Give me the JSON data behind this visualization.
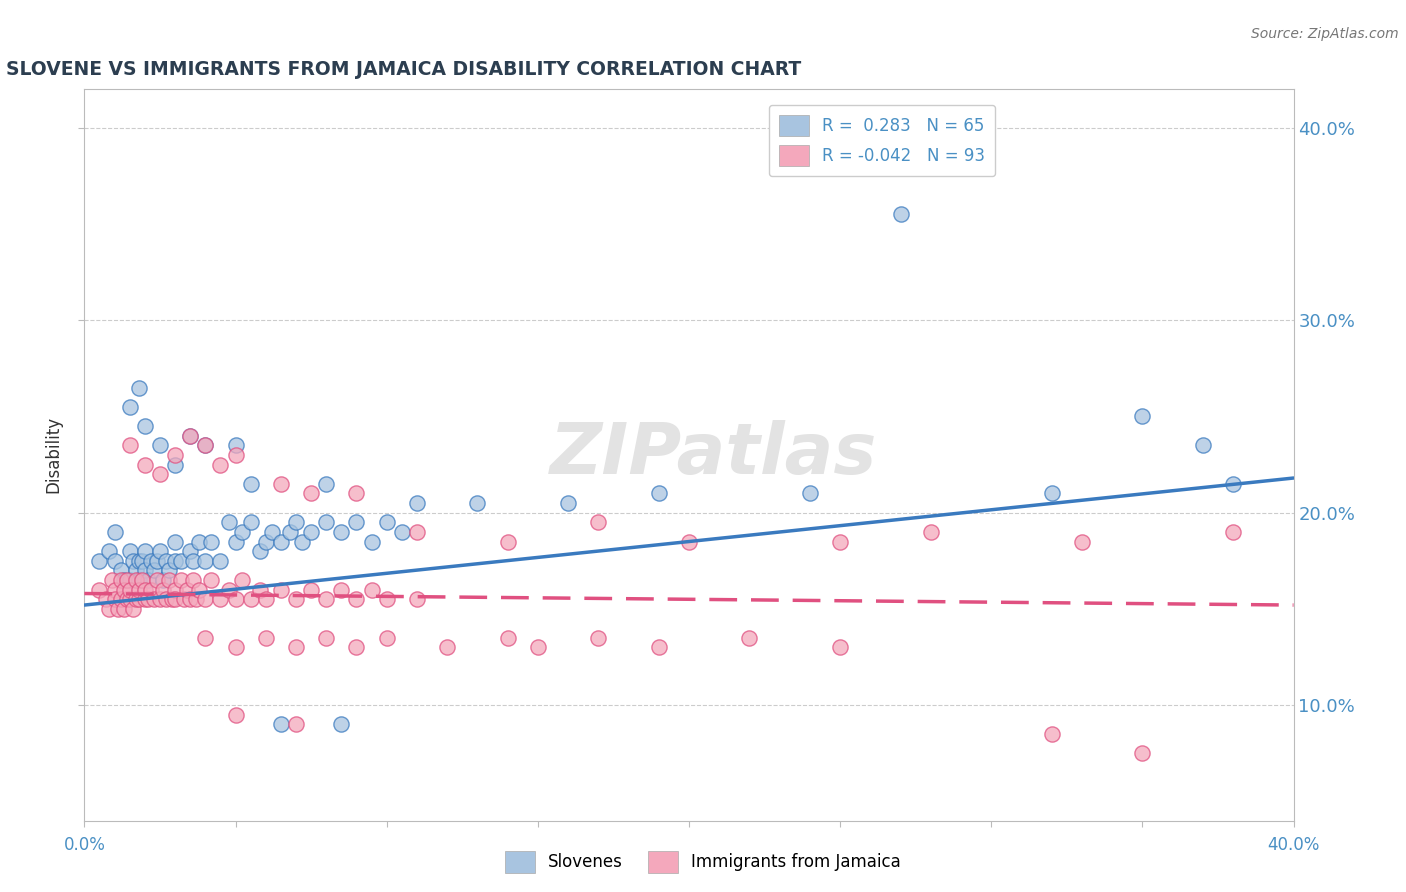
{
  "title": "SLOVENE VS IMMIGRANTS FROM JAMAICA DISABILITY CORRELATION CHART",
  "source": "Source: ZipAtlas.com",
  "ylabel": "Disability",
  "xlim": [
    0.0,
    0.4
  ],
  "ylim": [
    0.04,
    0.42
  ],
  "yticks": [
    0.1,
    0.2,
    0.3,
    0.4
  ],
  "right_ytick_labels": [
    "10.0%",
    "20.0%",
    "30.0%",
    "40.0%"
  ],
  "color_blue": "#a8c4e0",
  "color_pink": "#f4a8bc",
  "color_blue_line": "#3a7abf",
  "color_pink_line": "#e05080",
  "watermark_text": "ZIPatlas",
  "slovene_points": [
    [
      0.005,
      0.175
    ],
    [
      0.008,
      0.18
    ],
    [
      0.01,
      0.19
    ],
    [
      0.01,
      0.175
    ],
    [
      0.012,
      0.17
    ],
    [
      0.013,
      0.165
    ],
    [
      0.015,
      0.18
    ],
    [
      0.015,
      0.165
    ],
    [
      0.016,
      0.175
    ],
    [
      0.017,
      0.17
    ],
    [
      0.018,
      0.165
    ],
    [
      0.018,
      0.175
    ],
    [
      0.019,
      0.175
    ],
    [
      0.02,
      0.17
    ],
    [
      0.02,
      0.18
    ],
    [
      0.021,
      0.165
    ],
    [
      0.022,
      0.175
    ],
    [
      0.023,
      0.17
    ],
    [
      0.024,
      0.175
    ],
    [
      0.025,
      0.18
    ],
    [
      0.026,
      0.165
    ],
    [
      0.027,
      0.175
    ],
    [
      0.028,
      0.17
    ],
    [
      0.03,
      0.175
    ],
    [
      0.03,
      0.185
    ],
    [
      0.032,
      0.175
    ],
    [
      0.035,
      0.18
    ],
    [
      0.036,
      0.175
    ],
    [
      0.038,
      0.185
    ],
    [
      0.04,
      0.175
    ],
    [
      0.042,
      0.185
    ],
    [
      0.045,
      0.175
    ],
    [
      0.048,
      0.195
    ],
    [
      0.05,
      0.185
    ],
    [
      0.052,
      0.19
    ],
    [
      0.055,
      0.195
    ],
    [
      0.058,
      0.18
    ],
    [
      0.06,
      0.185
    ],
    [
      0.062,
      0.19
    ],
    [
      0.065,
      0.185
    ],
    [
      0.068,
      0.19
    ],
    [
      0.07,
      0.195
    ],
    [
      0.072,
      0.185
    ],
    [
      0.075,
      0.19
    ],
    [
      0.08,
      0.195
    ],
    [
      0.085,
      0.19
    ],
    [
      0.09,
      0.195
    ],
    [
      0.095,
      0.185
    ],
    [
      0.1,
      0.195
    ],
    [
      0.105,
      0.19
    ],
    [
      0.015,
      0.255
    ],
    [
      0.02,
      0.245
    ],
    [
      0.018,
      0.265
    ],
    [
      0.025,
      0.235
    ],
    [
      0.03,
      0.225
    ],
    [
      0.035,
      0.24
    ],
    [
      0.04,
      0.235
    ],
    [
      0.05,
      0.235
    ],
    [
      0.055,
      0.215
    ],
    [
      0.08,
      0.215
    ],
    [
      0.11,
      0.205
    ],
    [
      0.13,
      0.205
    ],
    [
      0.16,
      0.205
    ],
    [
      0.19,
      0.21
    ],
    [
      0.24,
      0.21
    ],
    [
      0.27,
      0.355
    ],
    [
      0.32,
      0.21
    ],
    [
      0.35,
      0.25
    ],
    [
      0.37,
      0.235
    ],
    [
      0.38,
      0.215
    ],
    [
      0.065,
      0.09
    ],
    [
      0.085,
      0.09
    ]
  ],
  "jamaica_points": [
    [
      0.005,
      0.16
    ],
    [
      0.007,
      0.155
    ],
    [
      0.008,
      0.15
    ],
    [
      0.009,
      0.165
    ],
    [
      0.01,
      0.16
    ],
    [
      0.01,
      0.155
    ],
    [
      0.011,
      0.15
    ],
    [
      0.012,
      0.165
    ],
    [
      0.012,
      0.155
    ],
    [
      0.013,
      0.16
    ],
    [
      0.013,
      0.15
    ],
    [
      0.014,
      0.155
    ],
    [
      0.014,
      0.165
    ],
    [
      0.015,
      0.155
    ],
    [
      0.015,
      0.16
    ],
    [
      0.016,
      0.15
    ],
    [
      0.017,
      0.155
    ],
    [
      0.017,
      0.165
    ],
    [
      0.018,
      0.155
    ],
    [
      0.018,
      0.16
    ],
    [
      0.019,
      0.165
    ],
    [
      0.02,
      0.155
    ],
    [
      0.02,
      0.16
    ],
    [
      0.021,
      0.155
    ],
    [
      0.022,
      0.16
    ],
    [
      0.023,
      0.155
    ],
    [
      0.024,
      0.165
    ],
    [
      0.025,
      0.155
    ],
    [
      0.026,
      0.16
    ],
    [
      0.027,
      0.155
    ],
    [
      0.028,
      0.165
    ],
    [
      0.029,
      0.155
    ],
    [
      0.03,
      0.16
    ],
    [
      0.03,
      0.155
    ],
    [
      0.032,
      0.165
    ],
    [
      0.033,
      0.155
    ],
    [
      0.034,
      0.16
    ],
    [
      0.035,
      0.155
    ],
    [
      0.036,
      0.165
    ],
    [
      0.037,
      0.155
    ],
    [
      0.038,
      0.16
    ],
    [
      0.04,
      0.155
    ],
    [
      0.042,
      0.165
    ],
    [
      0.045,
      0.155
    ],
    [
      0.048,
      0.16
    ],
    [
      0.05,
      0.155
    ],
    [
      0.052,
      0.165
    ],
    [
      0.055,
      0.155
    ],
    [
      0.058,
      0.16
    ],
    [
      0.06,
      0.155
    ],
    [
      0.065,
      0.16
    ],
    [
      0.07,
      0.155
    ],
    [
      0.075,
      0.16
    ],
    [
      0.08,
      0.155
    ],
    [
      0.085,
      0.16
    ],
    [
      0.09,
      0.155
    ],
    [
      0.095,
      0.16
    ],
    [
      0.1,
      0.155
    ],
    [
      0.11,
      0.155
    ],
    [
      0.015,
      0.235
    ],
    [
      0.02,
      0.225
    ],
    [
      0.025,
      0.22
    ],
    [
      0.03,
      0.23
    ],
    [
      0.035,
      0.24
    ],
    [
      0.04,
      0.235
    ],
    [
      0.045,
      0.225
    ],
    [
      0.05,
      0.23
    ],
    [
      0.065,
      0.215
    ],
    [
      0.075,
      0.21
    ],
    [
      0.09,
      0.21
    ],
    [
      0.11,
      0.19
    ],
    [
      0.14,
      0.185
    ],
    [
      0.17,
      0.195
    ],
    [
      0.2,
      0.185
    ],
    [
      0.25,
      0.185
    ],
    [
      0.28,
      0.19
    ],
    [
      0.33,
      0.185
    ],
    [
      0.38,
      0.19
    ],
    [
      0.04,
      0.135
    ],
    [
      0.05,
      0.13
    ],
    [
      0.06,
      0.135
    ],
    [
      0.07,
      0.13
    ],
    [
      0.08,
      0.135
    ],
    [
      0.09,
      0.13
    ],
    [
      0.1,
      0.135
    ],
    [
      0.12,
      0.13
    ],
    [
      0.14,
      0.135
    ],
    [
      0.15,
      0.13
    ],
    [
      0.17,
      0.135
    ],
    [
      0.19,
      0.13
    ],
    [
      0.22,
      0.135
    ],
    [
      0.25,
      0.13
    ],
    [
      0.32,
      0.085
    ],
    [
      0.35,
      0.075
    ],
    [
      0.05,
      0.095
    ],
    [
      0.07,
      0.09
    ]
  ],
  "blue_line_x": [
    0.0,
    0.4
  ],
  "blue_line_y": [
    0.152,
    0.218
  ],
  "pink_line_x": [
    0.0,
    0.4
  ],
  "pink_line_y": [
    0.158,
    0.152
  ]
}
